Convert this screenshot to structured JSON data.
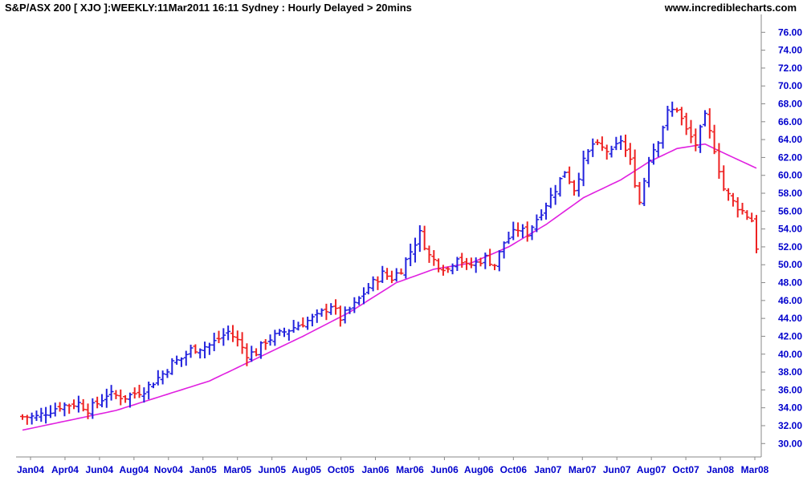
{
  "header": {
    "title": "S&P/ASX 200 [ XJO ]:WEEKLY:11Mar2011 16:11 Sydney : Hourly Delayed > 20mins",
    "site": "www.incrediblecharts.com"
  },
  "colors": {
    "up": "#2222dd",
    "down": "#ee2222",
    "ma": "#e020e0",
    "grid": "#d0d0d0",
    "tick": "#0000cc"
  },
  "chart_data": {
    "type": "candlestick-bar",
    "title": "S&P/ASX 200 [ XJO ]:WEEKLY:11Mar2011 16:11 Sydney : Hourly Delayed > 20mins",
    "xlabel": "",
    "ylabel": "",
    "ylim": [
      28.5,
      78
    ],
    "yticks": [
      30,
      32,
      34,
      36,
      38,
      40,
      42,
      44,
      46,
      48,
      50,
      52,
      54,
      56,
      58,
      60,
      62,
      64,
      66,
      68,
      70,
      72,
      74,
      76
    ],
    "ytick_labels": [
      "30.00",
      "32.00",
      "34.00",
      "36.00",
      "38.00",
      "40.00",
      "42.00",
      "44.00",
      "46.00",
      "48.00",
      "50.00",
      "52.00",
      "54.00",
      "56.00",
      "58.00",
      "60.00",
      "62.00",
      "64.00",
      "66.00",
      "68.00",
      "70.00",
      "72.00",
      "74.00",
      "76.00"
    ],
    "x_axis_labels": [
      "Jan04",
      "Apr04",
      "Jun04",
      "Aug04",
      "Nov04",
      "Jan05",
      "Mar05",
      "Jun05",
      "Aug05",
      "Oct05",
      "Jan06",
      "Mar06",
      "Jun06",
      "Aug06",
      "Oct06",
      "Jan07",
      "Mar07",
      "Jun07",
      "Aug07",
      "Oct07",
      "Jan08",
      "Mar08"
    ],
    "grid": true,
    "price_anchors": [
      [
        0,
        33.0
      ],
      [
        3,
        33.0
      ],
      [
        8,
        34.2
      ],
      [
        12,
        34.5
      ],
      [
        14,
        33.8
      ],
      [
        16,
        34.5
      ],
      [
        18,
        35.5
      ],
      [
        22,
        35.2
      ],
      [
        26,
        36.0
      ],
      [
        30,
        37.8
      ],
      [
        32,
        39.0
      ],
      [
        34,
        39.5
      ],
      [
        36,
        40.5
      ],
      [
        40,
        41.0
      ],
      [
        44,
        42.5
      ],
      [
        46,
        41.5
      ],
      [
        48,
        40.0
      ],
      [
        50,
        40.2
      ],
      [
        52,
        41.5
      ],
      [
        56,
        42.5
      ],
      [
        60,
        43.5
      ],
      [
        63,
        44.2
      ],
      [
        66,
        45.5
      ],
      [
        68,
        44.0
      ],
      [
        71,
        45.5
      ],
      [
        74,
        47.5
      ],
      [
        77,
        49.0
      ],
      [
        79,
        48.5
      ],
      [
        81,
        49.5
      ],
      [
        83,
        51.5
      ],
      [
        85,
        53.5
      ],
      [
        87,
        51.0
      ],
      [
        89,
        50.0
      ],
      [
        91,
        49.5
      ],
      [
        93,
        51.0
      ],
      [
        95,
        49.8
      ],
      [
        97,
        50.2
      ],
      [
        99,
        50.8
      ],
      [
        101,
        50.0
      ],
      [
        103,
        52.5
      ],
      [
        106,
        54.0
      ],
      [
        108,
        53.5
      ],
      [
        111,
        56.0
      ],
      [
        114,
        58.5
      ],
      [
        116,
        60.5
      ],
      [
        118,
        58.5
      ],
      [
        120,
        61.5
      ],
      [
        122,
        63.5
      ],
      [
        124,
        63.0
      ],
      [
        126,
        62.5
      ],
      [
        128,
        64.0
      ],
      [
        130,
        61.5
      ],
      [
        132,
        57.0
      ],
      [
        134,
        62.0
      ],
      [
        136,
        64.0
      ],
      [
        138,
        67.0
      ],
      [
        140,
        67.5
      ],
      [
        142,
        65.0
      ],
      [
        144,
        63.5
      ],
      [
        146,
        66.5
      ],
      [
        148,
        63.0
      ],
      [
        150,
        58.5
      ],
      [
        152,
        57.0
      ],
      [
        154,
        56.0
      ],
      [
        156,
        55.0
      ],
      [
        157,
        52.0
      ]
    ],
    "ma_anchors": [
      [
        0,
        31.5
      ],
      [
        20,
        33.7
      ],
      [
        40,
        37.0
      ],
      [
        50,
        39.5
      ],
      [
        60,
        42.0
      ],
      [
        70,
        44.7
      ],
      [
        80,
        48.0
      ],
      [
        88,
        49.5
      ],
      [
        96,
        50.2
      ],
      [
        104,
        52.0
      ],
      [
        112,
        54.5
      ],
      [
        120,
        57.5
      ],
      [
        128,
        59.5
      ],
      [
        134,
        61.5
      ],
      [
        140,
        63.0
      ],
      [
        146,
        63.5
      ],
      [
        150,
        62.5
      ],
      [
        157,
        60.8
      ]
    ]
  }
}
